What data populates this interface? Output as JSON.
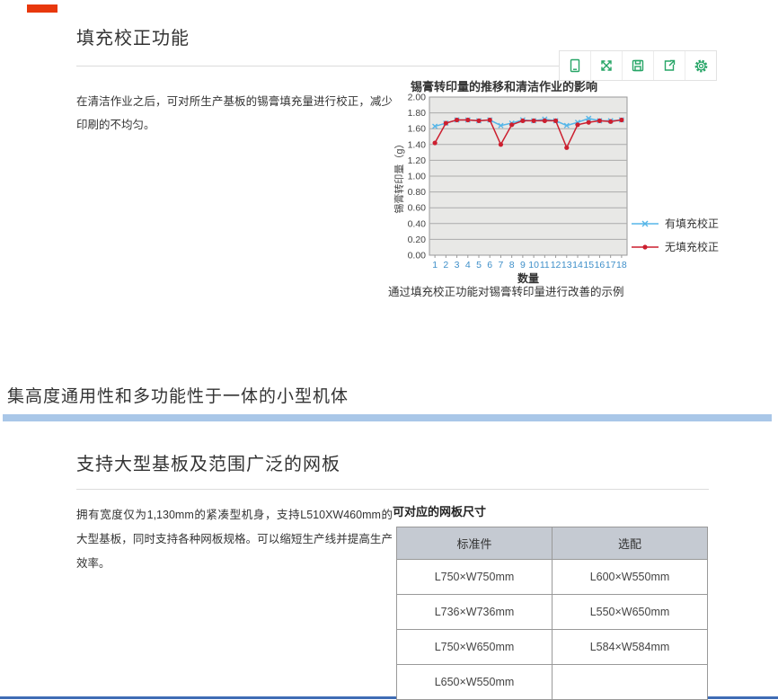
{
  "page": {
    "top_mark_color": "#e8380d",
    "bottom_line_color": "#3f6cb5"
  },
  "section_fill_correction": {
    "title": "填充校正功能",
    "description": "在清洁作业之后，可对所生产基板的锡膏填充量进行校正，减少印刷的不均匀。",
    "chart_caption": "通过填充校正功能对锡膏转印量进行改善的示例",
    "toolbar": {
      "icon_color": "#27a567",
      "icons": [
        "device-icon",
        "expand-icon",
        "save-icon",
        "export-icon",
        "settings-icon"
      ]
    }
  },
  "chart_data": {
    "type": "line",
    "title": "锡膏转印量的推移和清洁作业的影响",
    "xlabel": "数量",
    "ylabel": "锡膏转印量（g）",
    "x": [
      1,
      2,
      3,
      4,
      5,
      6,
      7,
      8,
      9,
      10,
      11,
      12,
      13,
      14,
      15,
      16,
      17,
      18
    ],
    "ylim": [
      0,
      2.0
    ],
    "ytick_step": 0.2,
    "grid": true,
    "plot_bg": "#e8e8e6",
    "grid_color": "#ababab",
    "xtick_color": "#3e8fc9",
    "legend_position": "right",
    "series": [
      {
        "name": "有填充校正",
        "color": "#56b6e8",
        "marker": "x",
        "values": [
          1.63,
          1.67,
          1.71,
          1.71,
          1.7,
          1.71,
          1.64,
          1.67,
          1.71,
          1.7,
          1.72,
          1.7,
          1.64,
          1.68,
          1.73,
          1.7,
          1.7,
          1.71
        ]
      },
      {
        "name": "无填充校正",
        "color": "#cc1f2f",
        "marker": "circle",
        "values": [
          1.42,
          1.67,
          1.71,
          1.71,
          1.7,
          1.71,
          1.4,
          1.65,
          1.7,
          1.7,
          1.7,
          1.7,
          1.36,
          1.65,
          1.68,
          1.7,
          1.69,
          1.71
        ]
      }
    ]
  },
  "section_banner": {
    "title": "集高度通用性和多功能性于一体的小型机体",
    "bar_color": "#a9c7e8"
  },
  "section_mask": {
    "title": "支持大型基板及范围广泛的网板",
    "description": "拥有宽度仅为1,130mm的紧凑型机身，支持L510XW460mm的大型基板，同时支持各种网板规格。可以缩短生产线并提高生产效率。",
    "table": {
      "label": "可对应的网板尺寸",
      "headers": [
        "标准件",
        "选配"
      ],
      "rows": [
        [
          "L750×W750mm",
          "L600×W550mm"
        ],
        [
          "L736×W736mm",
          "L550×W650mm"
        ],
        [
          "L750×W650mm",
          "L584×W584mm"
        ],
        [
          "L650×W550mm",
          ""
        ]
      ]
    }
  }
}
